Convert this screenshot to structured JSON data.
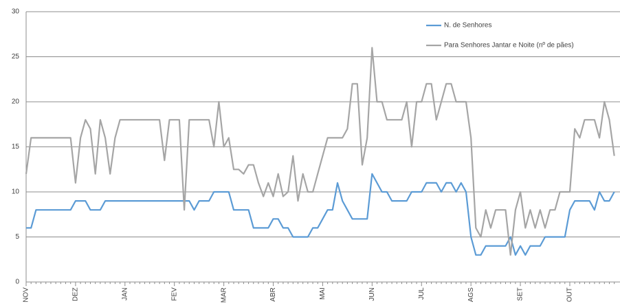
{
  "chart_data": {
    "type": "line",
    "categories": [
      "NOV",
      null,
      null,
      null,
      null,
      null,
      null,
      null,
      null,
      null,
      "DEZ",
      null,
      null,
      null,
      null,
      null,
      null,
      null,
      null,
      null,
      "JAN",
      null,
      null,
      null,
      null,
      null,
      null,
      null,
      null,
      null,
      "FEV",
      null,
      null,
      null,
      null,
      null,
      null,
      null,
      null,
      null,
      "MAR",
      null,
      null,
      null,
      null,
      null,
      null,
      null,
      null,
      null,
      "ABR",
      null,
      null,
      null,
      null,
      null,
      null,
      null,
      null,
      null,
      "MAI",
      null,
      null,
      null,
      null,
      null,
      null,
      null,
      null,
      null,
      "JUN",
      null,
      null,
      null,
      null,
      null,
      null,
      null,
      null,
      null,
      "JUL",
      null,
      null,
      null,
      null,
      null,
      null,
      null,
      null,
      null,
      "AGS",
      null,
      null,
      null,
      null,
      null,
      null,
      null,
      null,
      null,
      "SET",
      null,
      null,
      null,
      null,
      null,
      null,
      null,
      null,
      null,
      "OUT",
      null,
      null,
      null,
      null,
      null,
      null,
      null,
      null,
      null
    ],
    "series": [
      {
        "name": "N. de Senhores",
        "color": "#5b9bd5",
        "values": [
          6,
          6,
          8,
          8,
          8,
          8,
          8,
          8,
          8,
          8,
          9,
          9,
          9,
          8,
          8,
          8,
          9,
          9,
          9,
          9,
          9,
          9,
          9,
          9,
          9,
          9,
          9,
          9,
          9,
          9,
          9,
          9,
          9,
          9,
          8,
          9,
          9,
          9,
          10,
          10,
          10,
          10,
          8,
          8,
          8,
          8,
          6,
          6,
          6,
          6,
          7,
          7,
          6,
          6,
          5,
          5,
          5,
          5,
          6,
          6,
          7,
          8,
          8,
          11,
          9,
          8,
          7,
          7,
          7,
          7,
          12,
          11,
          10,
          10,
          9,
          9,
          9,
          9,
          10,
          10,
          10,
          11,
          11,
          11,
          10,
          11,
          11,
          10,
          11,
          10,
          5,
          3,
          3,
          4,
          4,
          4,
          4,
          4,
          5,
          3,
          4,
          3,
          4,
          4,
          4,
          5,
          5,
          5,
          5,
          5,
          8,
          9,
          9,
          9,
          9,
          8,
          10,
          9,
          9,
          10
        ]
      },
      {
        "name": "Para Senhores Jantar e Noite (nº de pães)",
        "color": "#a5a5a5",
        "values": [
          12,
          16,
          16,
          16,
          16,
          16,
          16,
          16,
          16,
          16,
          11,
          16,
          18,
          17,
          12,
          18,
          16,
          12,
          16,
          18,
          18,
          18,
          18,
          18,
          18,
          18,
          18,
          18,
          13.5,
          18,
          18,
          18,
          8,
          18,
          18,
          18,
          18,
          18,
          15,
          20,
          15,
          16,
          12.5,
          12.5,
          12,
          13,
          13,
          11,
          9.5,
          11,
          9.5,
          12,
          9.5,
          10,
          14,
          9,
          12,
          10,
          10,
          12,
          14,
          16,
          16,
          16,
          16,
          17,
          22,
          22,
          13,
          16,
          26,
          20,
          20,
          18,
          18,
          18,
          18,
          20,
          15,
          20,
          20,
          22,
          22,
          18,
          20,
          22,
          22,
          20,
          20,
          20,
          16,
          6,
          5,
          8,
          6,
          8,
          8,
          8,
          3,
          8,
          10,
          6,
          8,
          6,
          8,
          6,
          8,
          8,
          10,
          10,
          10,
          17,
          16,
          18,
          18,
          18,
          16,
          20,
          18,
          14
        ]
      }
    ],
    "ylim": [
      0,
      30
    ],
    "yticks": [
      0,
      5,
      10,
      15,
      20,
      25,
      30
    ],
    "grid": true,
    "legend": "top-right"
  }
}
